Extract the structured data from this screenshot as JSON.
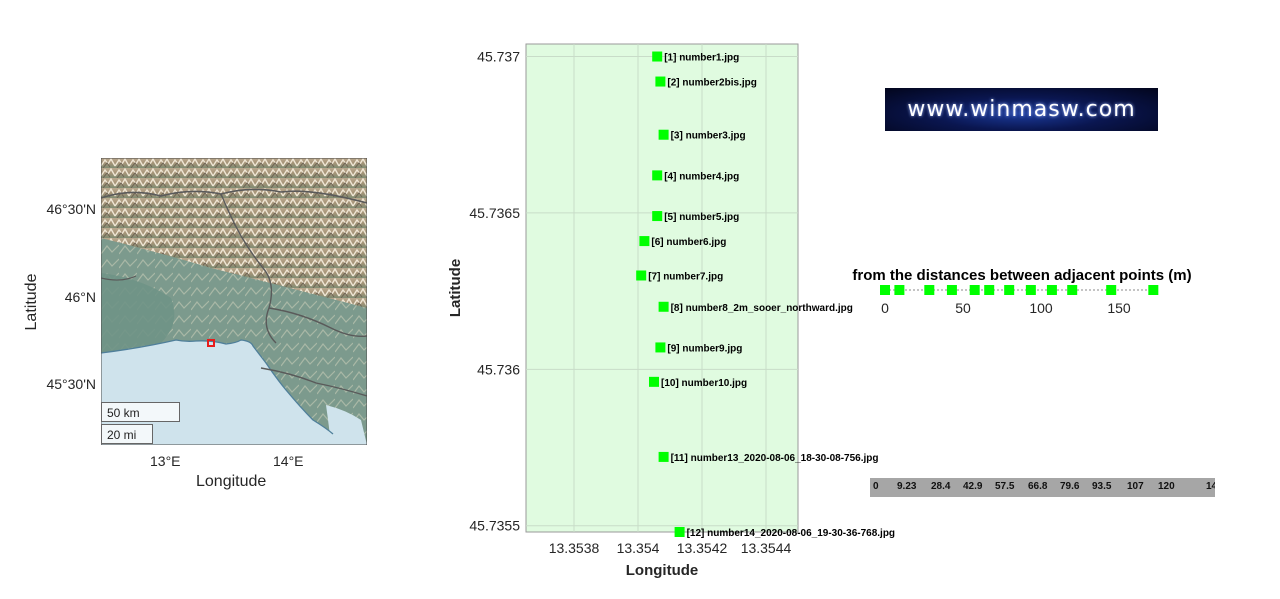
{
  "overview_map": {
    "lat_ticks": [
      "46°30'N",
      "46°N",
      "45°30'N"
    ],
    "lon_ticks": [
      "13°E",
      "14°E"
    ],
    "xlabel": "Longitude",
    "ylabel": "Latitude",
    "scalebar": {
      "km": "50 km",
      "mi": "20 mi"
    },
    "marker_color": "#e81b1b"
  },
  "chart_data": [
    {
      "type": "scatter",
      "xlabel": "Longitude",
      "ylabel": "Latitude",
      "xlim": [
        13.35365,
        13.3545
      ],
      "ylim": [
        45.73548,
        45.73704
      ],
      "x_ticks": [
        "13.3538",
        "13.354",
        "13.3542",
        "13.3544"
      ],
      "x_tick_values": [
        13.3538,
        13.354,
        13.3542,
        13.3544
      ],
      "y_ticks": [
        "45.737",
        "45.7365",
        "45.736",
        "45.7355"
      ],
      "y_tick_values": [
        45.737,
        45.7365,
        45.736,
        45.7355
      ],
      "grid": true,
      "background": "#e0fbe0",
      "marker_color": "#00ff00",
      "points": [
        {
          "label": "[1] number1.jpg",
          "x": 13.35406,
          "y": 45.737
        },
        {
          "label": "[2] number2bis.jpg",
          "x": 13.35407,
          "y": 45.73692
        },
        {
          "label": "[3] number3.jpg",
          "x": 13.35408,
          "y": 45.73675
        },
        {
          "label": "[4] number4.jpg",
          "x": 13.35406,
          "y": 45.73662
        },
        {
          "label": "[5] number5.jpg",
          "x": 13.35406,
          "y": 45.73649
        },
        {
          "label": "[6] number6.jpg",
          "x": 13.35402,
          "y": 45.73641
        },
        {
          "label": "[7] number7.jpg",
          "x": 13.35401,
          "y": 45.7363
        },
        {
          "label": "[8] number8_2m_sooer_northward.jpg",
          "x": 13.35408,
          "y": 45.7362
        },
        {
          "label": "[9] number9.jpg",
          "x": 13.35407,
          "y": 45.73607
        },
        {
          "label": "[10] number10.jpg",
          "x": 13.35405,
          "y": 45.73596
        },
        {
          "label": "[11] number13_2020-08-06_18-30-08-756.jpg",
          "x": 13.35408,
          "y": 45.73572
        },
        {
          "label": "[12] number14_2020-08-06_19-30-36-768.jpg",
          "x": 13.35413,
          "y": 45.73548
        }
      ]
    },
    {
      "type": "scatter",
      "title": "from the distances between adjacent points (m)",
      "xlim": [
        0,
        175
      ],
      "x_ticks": [
        "0",
        "50",
        "100",
        "150"
      ],
      "x_tick_values": [
        0,
        50,
        100,
        150
      ],
      "marker_color": "#00ff00",
      "values": [
        0,
        9.23,
        28.4,
        42.9,
        57.5,
        66.8,
        79.6,
        93.5,
        107,
        120,
        145,
        172
      ]
    }
  ],
  "logo_text": "www.winmasw.com",
  "distance_strip": {
    "visible_values": [
      "0",
      "9.23",
      "28.4",
      "42.9",
      "57.5",
      "66.8",
      "79.6",
      "93.5",
      "107",
      "120",
      "14"
    ]
  }
}
